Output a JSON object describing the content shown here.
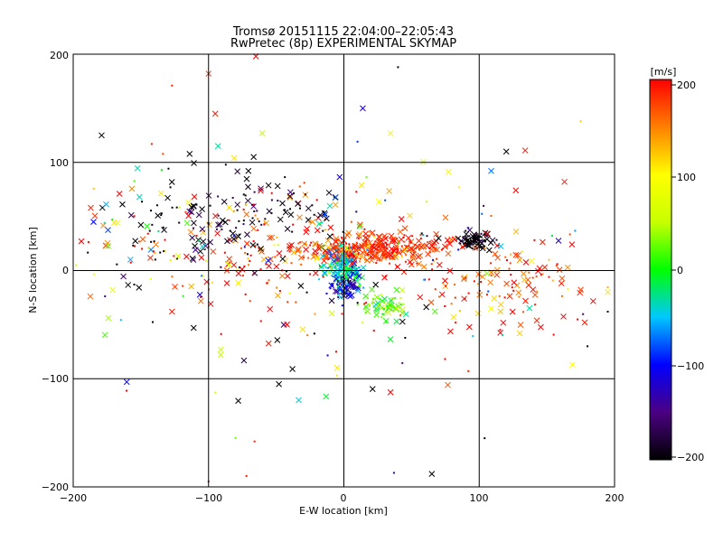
{
  "chart_data": {
    "type": "scatter",
    "title": "Tromsø 20151115 22:04:00–22:05:43",
    "subtitle": "RwPretec (8p) EXPERIMENTAL SKYMAP",
    "xlabel": "E-W location [km]",
    "ylabel": "N-S location [km]",
    "xlim": [
      -200,
      200
    ],
    "ylim": [
      -200,
      200
    ],
    "xticks": [
      -200,
      -100,
      0,
      100,
      200
    ],
    "yticks": [
      -200,
      -100,
      0,
      100,
      200
    ],
    "xtick_labels": [
      "−200",
      "−100",
      "0",
      "100",
      "200"
    ],
    "ytick_labels": [
      "−200",
      "−100",
      "0",
      "100",
      "200"
    ],
    "grid": true,
    "colorbar": {
      "label": "[m/s]",
      "range": [
        -200,
        200
      ],
      "ticks": [
        200,
        100,
        0,
        -100,
        -200
      ],
      "tick_labels": [
        "200",
        "100",
        "0",
        "−100",
        "−200"
      ],
      "colors": [
        "#000000",
        "#4b0082",
        "#0000ff",
        "#00c8ff",
        "#00ff00",
        "#c8ff00",
        "#ffff00",
        "#ff8000",
        "#ff0000"
      ]
    },
    "clusters": [
      {
        "x": 97,
        "y": 28,
        "sx": 6,
        "sy": 4,
        "n": 90,
        "v": -200,
        "dv": 20
      },
      {
        "x": 5,
        "y": 18,
        "sx": 22,
        "sy": 6,
        "n": 220,
        "v": 180,
        "dv": 25
      },
      {
        "x": 45,
        "y": 22,
        "sx": 25,
        "sy": 8,
        "n": 120,
        "v": 185,
        "dv": 20
      },
      {
        "x": 0,
        "y": 0,
        "sx": 7,
        "sy": 10,
        "n": 180,
        "v": -40,
        "dv": 35
      },
      {
        "x": 2,
        "y": -15,
        "sx": 5,
        "sy": 6,
        "n": 60,
        "v": -130,
        "dv": 30
      },
      {
        "x": 30,
        "y": -32,
        "sx": 8,
        "sy": 6,
        "n": 70,
        "v": 20,
        "dv": 25
      },
      {
        "x": -60,
        "y": 20,
        "sx": 55,
        "sy": 28,
        "n": 160,
        "v": 170,
        "dv": 50
      },
      {
        "x": -100,
        "y": 45,
        "sx": 30,
        "sy": 25,
        "n": 90,
        "v": -200,
        "dv": 30
      },
      {
        "x": 120,
        "y": -10,
        "sx": 35,
        "sy": 25,
        "n": 120,
        "v": 180,
        "dv": 40
      },
      {
        "x": -40,
        "y": 60,
        "sx": 20,
        "sy": 10,
        "n": 40,
        "v": -190,
        "dv": 15
      },
      {
        "x": -150,
        "y": 20,
        "sx": 35,
        "sy": 30,
        "n": 60,
        "v": 100,
        "dv": 220
      },
      {
        "x": 0,
        "y": 0,
        "sx": 90,
        "sy": 60,
        "n": 140,
        "v": 0,
        "dv": 250
      }
    ],
    "points": [
      {
        "x": -179,
        "y": 125,
        "v": -200,
        "m": "x"
      },
      {
        "x": -100,
        "y": 182,
        "v": 180,
        "m": "x"
      },
      {
        "x": -95,
        "y": 145,
        "v": 190,
        "m": "x"
      },
      {
        "x": -93,
        "y": 115,
        "v": -30,
        "m": "x"
      },
      {
        "x": -65,
        "y": 198,
        "v": 200,
        "m": "x"
      },
      {
        "x": -81,
        "y": 104,
        "v": 110,
        "m": "x"
      },
      {
        "x": 14,
        "y": 150,
        "v": -120,
        "m": "x"
      },
      {
        "x": 120,
        "y": 110,
        "v": -200,
        "m": "x"
      },
      {
        "x": 134,
        "y": 111,
        "v": 190,
        "m": "x"
      },
      {
        "x": 163,
        "y": 82,
        "v": 190,
        "m": "x"
      },
      {
        "x": 175,
        "y": 138,
        "v": 120,
        "m": "."
      },
      {
        "x": 40,
        "y": 188,
        "v": -200,
        "m": "."
      },
      {
        "x": -127,
        "y": 171,
        "v": 190,
        "m": "."
      },
      {
        "x": -142,
        "y": 117,
        "v": 190,
        "m": "."
      },
      {
        "x": -174,
        "y": -44,
        "v": 40,
        "m": "x"
      },
      {
        "x": -127,
        "y": -38,
        "v": 190,
        "m": "x"
      },
      {
        "x": -111,
        "y": -53,
        "v": -200,
        "m": "x"
      },
      {
        "x": -91,
        "y": -73,
        "v": 50,
        "m": "x"
      },
      {
        "x": -91,
        "y": -78,
        "v": 50,
        "m": "x"
      },
      {
        "x": -48,
        "y": -105,
        "v": -200,
        "m": "x"
      },
      {
        "x": -38,
        "y": -91,
        "v": -200,
        "m": "x"
      },
      {
        "x": -5,
        "y": -90,
        "v": 110,
        "m": "x"
      },
      {
        "x": -5,
        "y": -97,
        "v": 110,
        "m": "."
      },
      {
        "x": -66,
        "y": -158,
        "v": 190,
        "m": "."
      },
      {
        "x": -72,
        "y": -190,
        "v": 190,
        "m": "."
      },
      {
        "x": -100,
        "y": -195,
        "v": 190,
        "m": "."
      },
      {
        "x": 65,
        "y": -188,
        "v": -200,
        "m": "x"
      },
      {
        "x": 37,
        "y": -187,
        "v": -120,
        "m": "."
      },
      {
        "x": 104,
        "y": -155,
        "v": -200,
        "m": "."
      },
      {
        "x": 92,
        "y": -93,
        "v": 190,
        "m": "."
      },
      {
        "x": 130,
        "y": -58,
        "v": 120,
        "m": "x"
      },
      {
        "x": 178,
        "y": -48,
        "v": 190,
        "m": "x"
      },
      {
        "x": 180,
        "y": -70,
        "v": -200,
        "m": "."
      },
      {
        "x": 195,
        "y": -20,
        "v": 110,
        "m": "x"
      },
      {
        "x": 195,
        "y": -38,
        "v": -200,
        "m": "."
      },
      {
        "x": -185,
        "y": 45,
        "v": -100,
        "m": "x"
      },
      {
        "x": -187,
        "y": 58,
        "v": 190,
        "m": "x"
      }
    ]
  }
}
